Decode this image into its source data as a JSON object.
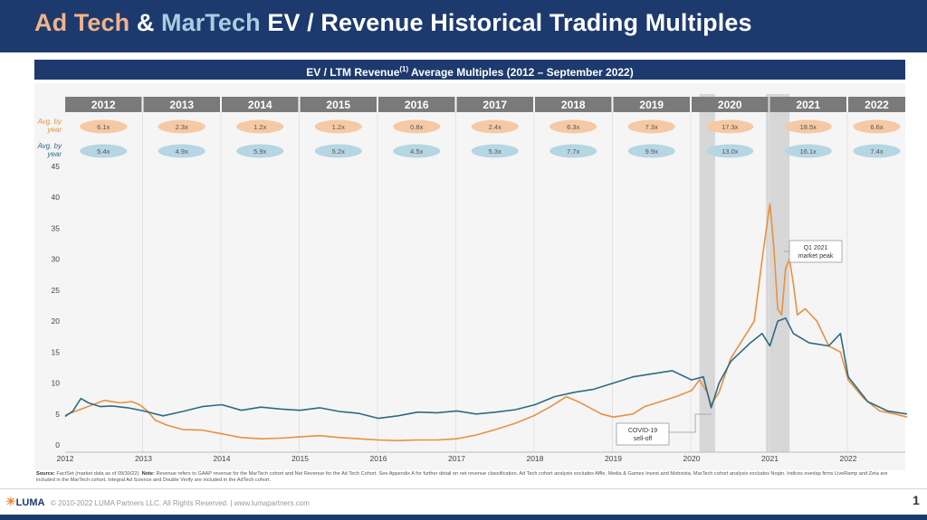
{
  "header": {
    "title_part1": "Ad Tech",
    "title_amp": " & ",
    "title_part2": "MarTech",
    "title_rest": " EV / Revenue Historical Trading Multiples"
  },
  "subtitle": {
    "prefix": "EV / LTM Revenue",
    "superscript": "(1)",
    "suffix": " Average Multiples (2012 – September 2022)"
  },
  "colors": {
    "adtech": "#e8913f",
    "martech": "#2d6b84",
    "adtech_pill": "#f5c9a3",
    "martech_pill": "#b5d6e3",
    "navy": "#1d3a6e",
    "year_header": "#7a7a7a"
  },
  "chart_data": {
    "type": "line",
    "title": "EV / LTM Revenue Average Multiples (2012 – September 2022)",
    "years": [
      "2012",
      "2013",
      "2014",
      "2015",
      "2016",
      "2017",
      "2018",
      "2019",
      "2020",
      "2021",
      "2022"
    ],
    "row_labels": {
      "adtech": "Avg. by year",
      "martech": "Avg. by year"
    },
    "avg_adtech": [
      "6.1x",
      "2.3x",
      "1.2x",
      "1.2x",
      "0.8x",
      "2.4x",
      "6.3x",
      "7.3x",
      "17.3x",
      "18.5x",
      "6.6x"
    ],
    "avg_martech": [
      "5.4x",
      "4.9x",
      "5.9x",
      "5.2x",
      "4.5x",
      "5.3x",
      "7.7x",
      "9.9x",
      "13.0x",
      "16.1x",
      "7.4x"
    ],
    "ylim": [
      0,
      45
    ],
    "y_ticks": [
      "0",
      "5",
      "10",
      "15",
      "20",
      "25",
      "30",
      "35",
      "40",
      "45"
    ],
    "x_ticks": [
      "2012",
      "2013",
      "2014",
      "2015",
      "2016",
      "2017",
      "2018",
      "2019",
      "2020",
      "2021",
      "2022"
    ],
    "series": [
      {
        "name": "Ad Tech",
        "points": [
          [
            2012.0,
            4.8
          ],
          [
            2012.25,
            6.0
          ],
          [
            2012.5,
            7.2
          ],
          [
            2012.7,
            6.8
          ],
          [
            2012.85,
            7.0
          ],
          [
            2012.95,
            6.5
          ],
          [
            2013.05,
            5.5
          ],
          [
            2013.15,
            4.0
          ],
          [
            2013.3,
            3.2
          ],
          [
            2013.5,
            2.5
          ],
          [
            2013.75,
            2.4
          ],
          [
            2014.0,
            1.8
          ],
          [
            2014.25,
            1.2
          ],
          [
            2014.5,
            1.0
          ],
          [
            2014.75,
            1.1
          ],
          [
            2015.0,
            1.3
          ],
          [
            2015.25,
            1.5
          ],
          [
            2015.5,
            1.2
          ],
          [
            2015.75,
            1.0
          ],
          [
            2016.0,
            0.8
          ],
          [
            2016.25,
            0.7
          ],
          [
            2016.5,
            0.8
          ],
          [
            2016.75,
            0.8
          ],
          [
            2017.0,
            1.0
          ],
          [
            2017.25,
            1.6
          ],
          [
            2017.5,
            2.5
          ],
          [
            2017.75,
            3.5
          ],
          [
            2018.0,
            4.8
          ],
          [
            2018.2,
            6.2
          ],
          [
            2018.4,
            7.8
          ],
          [
            2018.55,
            7.0
          ],
          [
            2018.7,
            6.0
          ],
          [
            2018.85,
            5.0
          ],
          [
            2019.0,
            4.5
          ],
          [
            2019.25,
            5.0
          ],
          [
            2019.4,
            6.2
          ],
          [
            2019.6,
            7.0
          ],
          [
            2019.8,
            7.8
          ],
          [
            2020.0,
            8.8
          ],
          [
            2020.1,
            10.5
          ],
          [
            2020.2,
            8.5
          ],
          [
            2020.25,
            6.5
          ],
          [
            2020.35,
            8.5
          ],
          [
            2020.5,
            14.0
          ],
          [
            2020.6,
            16.0
          ],
          [
            2020.7,
            18.0
          ],
          [
            2020.8,
            20.0
          ],
          [
            2020.9,
            30.0
          ],
          [
            2021.0,
            39.0
          ],
          [
            2021.05,
            32.0
          ],
          [
            2021.1,
            22.0
          ],
          [
            2021.15,
            21.0
          ],
          [
            2021.2,
            28.5
          ],
          [
            2021.25,
            30.0
          ],
          [
            2021.3,
            26.0
          ],
          [
            2021.35,
            21.0
          ],
          [
            2021.45,
            22.0
          ],
          [
            2021.6,
            20.0
          ],
          [
            2021.75,
            16.0
          ],
          [
            2021.9,
            15.0
          ],
          [
            2022.0,
            10.5
          ],
          [
            2022.2,
            7.5
          ],
          [
            2022.4,
            5.5
          ],
          [
            2022.6,
            5.0
          ],
          [
            2022.75,
            4.5
          ]
        ]
      },
      {
        "name": "MarTech",
        "points": [
          [
            2012.0,
            4.6
          ],
          [
            2012.1,
            5.5
          ],
          [
            2012.2,
            7.5
          ],
          [
            2012.3,
            6.8
          ],
          [
            2012.45,
            6.2
          ],
          [
            2012.6,
            6.3
          ],
          [
            2012.8,
            6.0
          ],
          [
            2013.0,
            5.5
          ],
          [
            2013.25,
            4.7
          ],
          [
            2013.5,
            5.4
          ],
          [
            2013.75,
            6.2
          ],
          [
            2014.0,
            6.5
          ],
          [
            2014.25,
            5.6
          ],
          [
            2014.5,
            6.1
          ],
          [
            2014.75,
            5.8
          ],
          [
            2015.0,
            5.6
          ],
          [
            2015.25,
            6.0
          ],
          [
            2015.5,
            5.4
          ],
          [
            2015.75,
            5.1
          ],
          [
            2016.0,
            4.3
          ],
          [
            2016.25,
            4.7
          ],
          [
            2016.5,
            5.3
          ],
          [
            2016.75,
            5.2
          ],
          [
            2017.0,
            5.5
          ],
          [
            2017.25,
            5.0
          ],
          [
            2017.5,
            5.3
          ],
          [
            2017.75,
            5.7
          ],
          [
            2018.0,
            6.5
          ],
          [
            2018.25,
            7.8
          ],
          [
            2018.5,
            8.5
          ],
          [
            2018.75,
            9.0
          ],
          [
            2019.0,
            10.0
          ],
          [
            2019.25,
            11.0
          ],
          [
            2019.5,
            11.5
          ],
          [
            2019.75,
            12.0
          ],
          [
            2020.0,
            10.5
          ],
          [
            2020.15,
            11.0
          ],
          [
            2020.25,
            6.0
          ],
          [
            2020.35,
            10.0
          ],
          [
            2020.5,
            13.5
          ],
          [
            2020.75,
            16.5
          ],
          [
            2020.9,
            18.0
          ],
          [
            2021.0,
            16.0
          ],
          [
            2021.1,
            20.0
          ],
          [
            2021.2,
            20.5
          ],
          [
            2021.3,
            18.0
          ],
          [
            2021.5,
            16.5
          ],
          [
            2021.75,
            16.0
          ],
          [
            2021.9,
            18.0
          ],
          [
            2022.0,
            11.0
          ],
          [
            2022.25,
            7.0
          ],
          [
            2022.5,
            5.5
          ],
          [
            2022.75,
            5.0
          ]
        ]
      }
    ],
    "shaded_periods": [
      [
        2020.1,
        2020.3
      ],
      [
        2020.95,
        2021.25
      ]
    ],
    "annotations": [
      {
        "label_line1": "Q1 2021",
        "label_line2": "market peak"
      },
      {
        "label_line1": "COVID-19",
        "label_line2": "sell-off"
      }
    ]
  },
  "source_note": {
    "label": "Source:",
    "text": " FactSet (market data as of 09/30/22). ",
    "note_label": "Note:",
    "note_text": " Revenue refers to GAAP revenue for the MarTech cohort and Net Revenue for the Ad Tech Cohort. See Appendix A for further detail on net revenue classification. Ad Tech cohort analysis excludes Affle, Media & Games Invest and Mobvista. MarTech cohort analysis excludes Nogin. Indices overlap firms LiveRamp and Zeta are included in the MarTech cohort. Integral Ad Science and Double Verify are included in the AdTech cohort."
  },
  "footer": {
    "logo": "LUMA",
    "copyright": "© 2010-2022 LUMA Partners LLC. All Rights Reserved. | www.lumapartners.com",
    "page": "1"
  }
}
